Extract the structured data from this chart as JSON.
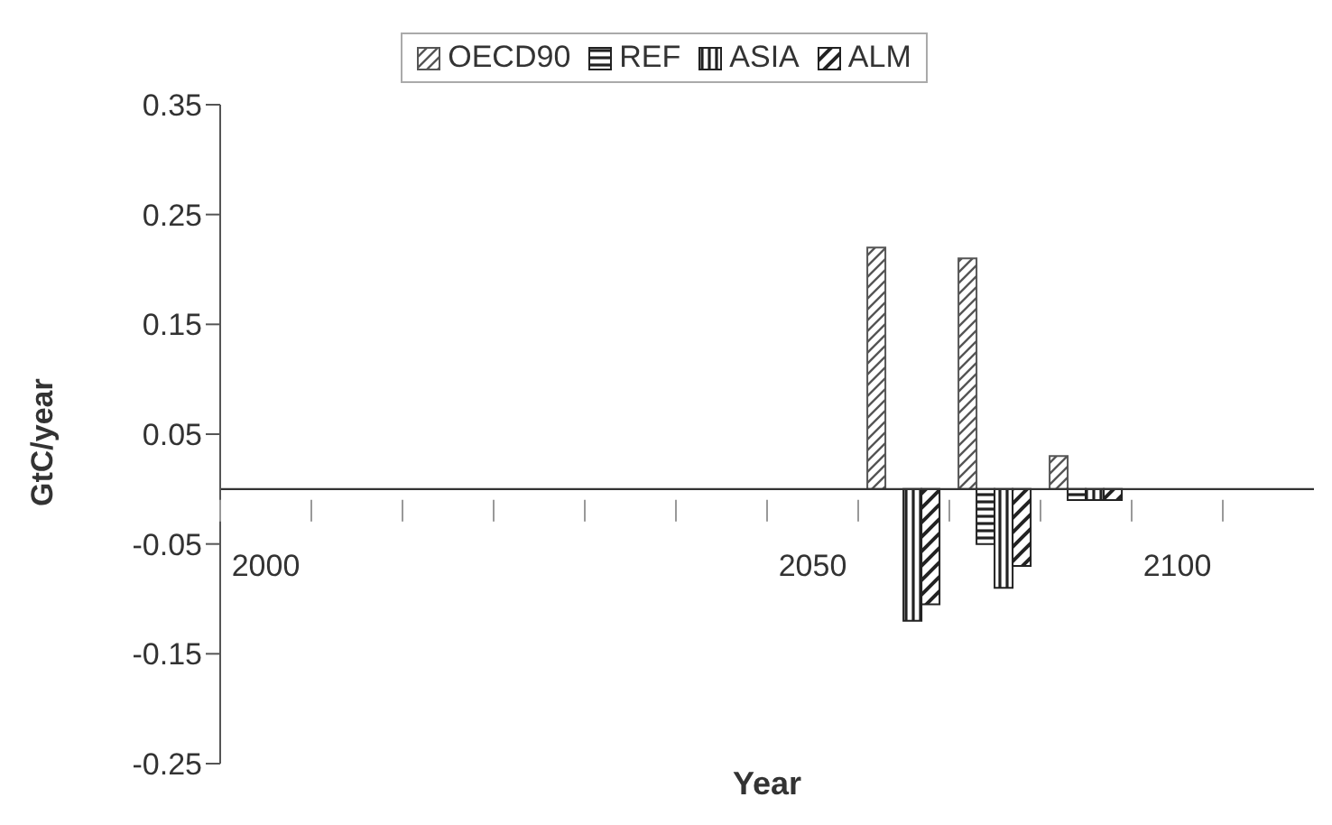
{
  "chart_data": {
    "type": "bar",
    "xlabel": "Year",
    "ylabel": "GtC/year",
    "categories": [
      "2000",
      null,
      null,
      null,
      null,
      null,
      "2050",
      null,
      null,
      null,
      "2100",
      null
    ],
    "series": [
      {
        "name": "OECD90",
        "color": "#555555",
        "values": [
          0,
          0,
          0,
          0,
          0,
          0,
          0,
          0.22,
          0.21,
          0.03,
          0,
          0
        ]
      },
      {
        "name": "REF",
        "color": "#222222",
        "values": [
          0,
          0,
          0,
          0,
          0,
          0,
          0,
          0,
          -0.05,
          -0.01,
          0,
          0
        ]
      },
      {
        "name": "ASIA",
        "color": "#222222",
        "values": [
          0,
          0,
          0,
          0,
          0,
          0,
          0,
          -0.12,
          -0.09,
          -0.01,
          0,
          0
        ]
      },
      {
        "name": "ALM",
        "color": "#222222",
        "values": [
          0,
          0,
          0,
          0,
          0,
          0,
          0,
          -0.105,
          -0.07,
          -0.01,
          0,
          0
        ]
      }
    ],
    "ylim": [
      -0.25,
      0.35
    ],
    "yticks": [
      -0.25,
      -0.15,
      -0.05,
      0.05,
      0.15,
      0.25,
      0.35
    ],
    "grid": false,
    "legend": "top"
  }
}
